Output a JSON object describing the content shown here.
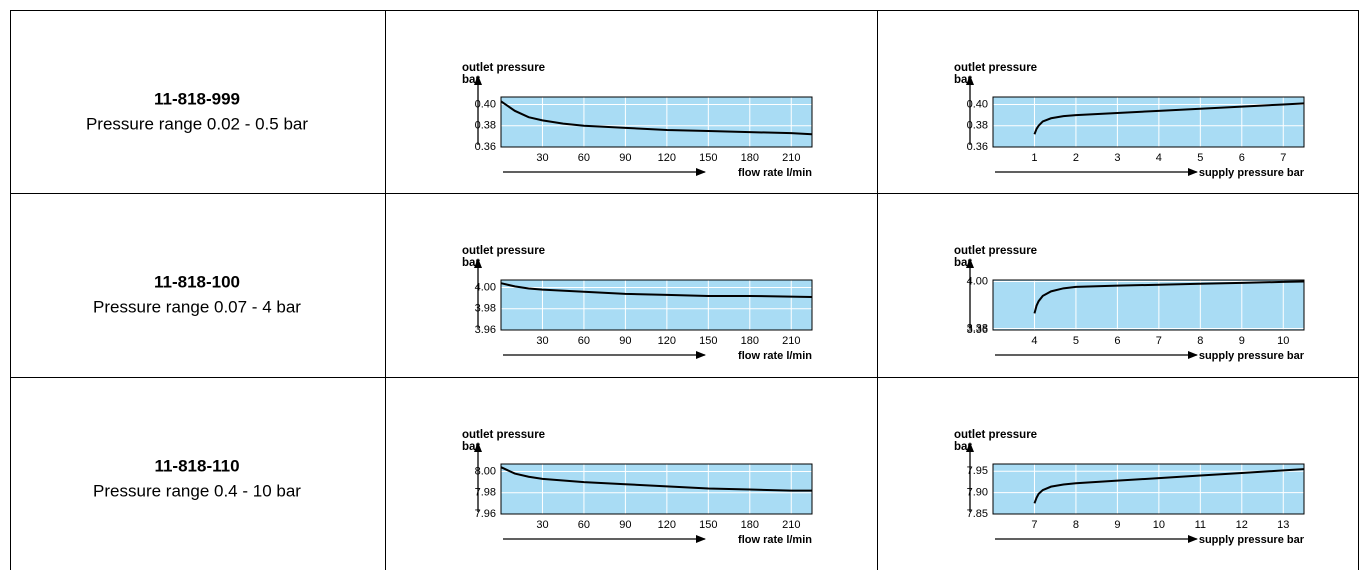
{
  "rows": [
    {
      "part": "11-818-999",
      "range": "Pressure range 0.02 - 0.5 bar"
    },
    {
      "part": "11-818-100",
      "range": "Pressure range 0.07 - 4 bar"
    },
    {
      "part": "11-818-110",
      "range": "Pressure range 0.4 - 10 bar"
    }
  ],
  "chart_data": [
    {
      "type": "line",
      "ylabel": [
        "outlet pressure",
        "bar"
      ],
      "xlabel": "flow rate l/min",
      "color": "#000000",
      "plot_color": "#a9dcf4",
      "grid": true,
      "x": [
        0,
        10,
        20,
        30,
        45,
        60,
        90,
        120,
        150,
        180,
        210,
        225
      ],
      "values": [
        0.403,
        0.394,
        0.388,
        0.385,
        0.382,
        0.38,
        0.378,
        0.376,
        0.375,
        0.374,
        0.373,
        0.372
      ],
      "xlim": [
        0,
        225
      ],
      "xticks": [
        30,
        60,
        90,
        120,
        150,
        180,
        210
      ],
      "ylim": [
        0.36,
        0.407
      ],
      "yticks": [
        0.36,
        0.38,
        {
          "value": 0.4,
          "label": "0.40"
        }
      ]
    },
    {
      "type": "line",
      "ylabel": [
        "outlet pressure",
        "bar"
      ],
      "xlabel": "supply pressure bar",
      "color": "#000000",
      "plot_color": "#a9dcf4",
      "grid": true,
      "x": [
        1,
        1.05,
        1.1,
        1.2,
        1.4,
        1.7,
        2,
        3,
        4,
        5,
        6,
        7,
        7.5
      ],
      "values": [
        0.372,
        0.377,
        0.38,
        0.384,
        0.387,
        0.389,
        0.39,
        0.392,
        0.394,
        0.396,
        0.398,
        0.4,
        0.401
      ],
      "xlim": [
        0,
        7.5
      ],
      "xticks": [
        1,
        2,
        3,
        4,
        5,
        6,
        7
      ],
      "ylim": [
        0.36,
        0.407
      ],
      "yticks": [
        0.36,
        0.38,
        {
          "value": 0.4,
          "label": "0.40"
        }
      ]
    },
    {
      "type": "line",
      "ylabel": [
        "outlet pressure",
        "bar"
      ],
      "xlabel": "flow rate l/min",
      "color": "#000000",
      "plot_color": "#a9dcf4",
      "grid": true,
      "x": [
        0,
        10,
        20,
        30,
        60,
        90,
        120,
        150,
        180,
        225
      ],
      "values": [
        4.004,
        4.001,
        3.999,
        3.998,
        3.996,
        3.994,
        3.993,
        3.992,
        3.992,
        3.991
      ],
      "xlim": [
        0,
        225
      ],
      "xticks": [
        30,
        60,
        90,
        120,
        150,
        180,
        210
      ],
      "ylim": [
        3.96,
        4.007
      ],
      "yticks": [
        3.96,
        3.98,
        {
          "value": 4,
          "label": "4.00"
        }
      ]
    },
    {
      "type": "line",
      "ylabel": [
        "outlet pressure",
        "bar"
      ],
      "xlabel": "supply pressure bar",
      "color": "#000000",
      "plot_color": "#a9dcf4",
      "grid": true,
      "x": [
        4,
        4.05,
        4.1,
        4.2,
        4.4,
        4.7,
        5,
        6,
        7,
        8,
        9,
        10,
        10.5
      ],
      "values": [
        3.58,
        3.68,
        3.74,
        3.81,
        3.87,
        3.91,
        3.93,
        3.945,
        3.958,
        3.97,
        3.982,
        3.995,
        4.0
      ],
      "xlim": [
        3,
        10.5
      ],
      "xticks": [
        4,
        5,
        6,
        7,
        8,
        9,
        10
      ],
      "ylim": [
        3.36,
        4.02
      ],
      "yticks": [
        3.36,
        3.38,
        {
          "value": 4,
          "label": "4.00"
        }
      ]
    },
    {
      "type": "line",
      "ylabel": [
        "outlet pressure",
        "bar"
      ],
      "xlabel": "flow rate l/min",
      "color": "#000000",
      "plot_color": "#a9dcf4",
      "grid": true,
      "x": [
        0,
        10,
        20,
        30,
        60,
        90,
        120,
        150,
        180,
        210,
        225
      ],
      "values": [
        8.004,
        7.998,
        7.995,
        7.993,
        7.99,
        7.988,
        7.986,
        7.984,
        7.983,
        7.982,
        7.982
      ],
      "xlim": [
        0,
        225
      ],
      "xticks": [
        30,
        60,
        90,
        120,
        150,
        180,
        210
      ],
      "ylim": [
        7.96,
        8.007
      ],
      "yticks": [
        7.96,
        7.98,
        {
          "value": 8,
          "label": "8.00"
        }
      ]
    },
    {
      "type": "line",
      "ylabel": [
        "outlet pressure",
        "bar"
      ],
      "xlabel": "supply pressure bar",
      "color": "#000000",
      "plot_color": "#a9dcf4",
      "grid": true,
      "x": [
        7,
        7.05,
        7.1,
        7.2,
        7.4,
        7.7,
        8,
        9,
        10,
        11,
        12,
        13,
        13.5
      ],
      "values": [
        7.875,
        7.888,
        7.897,
        7.906,
        7.914,
        7.919,
        7.922,
        7.928,
        7.934,
        7.94,
        7.946,
        7.952,
        7.955
      ],
      "xlim": [
        6,
        13.5
      ],
      "xticks": [
        7,
        8,
        9,
        10,
        11,
        12,
        13
      ],
      "ylim": [
        7.85,
        7.967
      ],
      "yticks": [
        7.85,
        {
          "value": 7.9,
          "label": "7.90"
        },
        7.95
      ]
    }
  ]
}
